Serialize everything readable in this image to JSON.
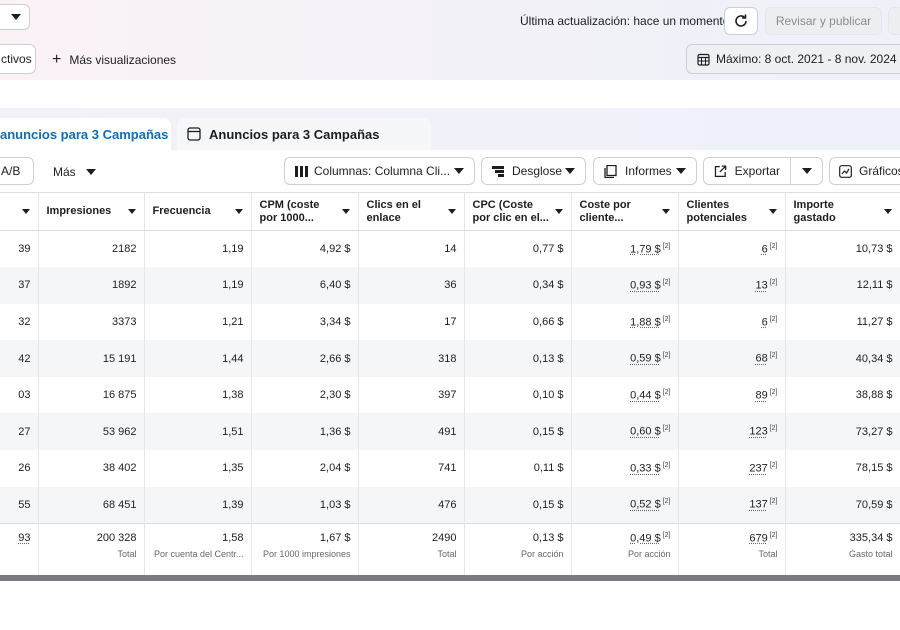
{
  "header": {
    "last_update": "Última actualización: hace un momento",
    "review_publish": "Revisar y publicar",
    "more_views": "Más visualizaciones",
    "filter_chip": "ctivos",
    "date_range": "Máximo: 8 oct. 2021 - 8 nov. 2024"
  },
  "tabs": [
    {
      "label": "anuncios para 3 Campañas",
      "active": true
    },
    {
      "label": "Anuncios para 3 Campañas",
      "active": false
    }
  ],
  "toolbar": {
    "ab": "A/B",
    "more": "Más",
    "columns": "Columnas: Columna Cli...",
    "breakdown": "Desglose",
    "reports": "Informes",
    "export": "Exportar",
    "charts": "Gráficos"
  },
  "columns": [
    {
      "label": ""
    },
    {
      "label": "Impresiones"
    },
    {
      "label": "Frecuencia"
    },
    {
      "label": "CPM (coste por 1000..."
    },
    {
      "label": "Clics en el enlace"
    },
    {
      "label": "CPC (Coste por clic en el..."
    },
    {
      "label": "Coste por cliente..."
    },
    {
      "label": "Clientes potenciales"
    },
    {
      "label": "Importe gastado"
    }
  ],
  "rows": [
    {
      "c0": "39",
      "impressions": "2182",
      "frequency": "1,19",
      "cpm": "4,92 $",
      "clicks": "14",
      "cpc": "0,77 $",
      "cpl": "1,79 $",
      "leads": "6",
      "spent": "10,73 $"
    },
    {
      "c0": "37",
      "impressions": "1892",
      "frequency": "1,19",
      "cpm": "6,40 $",
      "clicks": "36",
      "cpc": "0,34 $",
      "cpl": "0,93 $",
      "leads": "13",
      "spent": "12,11 $"
    },
    {
      "c0": "32",
      "impressions": "3373",
      "frequency": "1,21",
      "cpm": "3,34 $",
      "clicks": "17",
      "cpc": "0,66 $",
      "cpl": "1,88 $",
      "leads": "6",
      "spent": "11,27 $"
    },
    {
      "c0": "42",
      "impressions": "15 191",
      "frequency": "1,44",
      "cpm": "2,66 $",
      "clicks": "318",
      "cpc": "0,13 $",
      "cpl": "0,59 $",
      "leads": "68",
      "spent": "40,34 $"
    },
    {
      "c0": "03",
      "impressions": "16 875",
      "frequency": "1,38",
      "cpm": "2,30 $",
      "clicks": "397",
      "cpc": "0,10 $",
      "cpl": "0,44 $",
      "leads": "89",
      "spent": "38,88 $"
    },
    {
      "c0": "27",
      "impressions": "53 962",
      "frequency": "1,51",
      "cpm": "1,36 $",
      "clicks": "491",
      "cpc": "0,15 $",
      "cpl": "0,60 $",
      "leads": "123",
      "spent": "73,27 $"
    },
    {
      "c0": "26",
      "impressions": "38 402",
      "frequency": "1,35",
      "cpm": "2,04 $",
      "clicks": "741",
      "cpc": "0,11 $",
      "cpl": "0,33 $",
      "leads": "237",
      "spent": "78,15 $"
    },
    {
      "c0": "55",
      "impressions": "68 451",
      "frequency": "1,39",
      "cpm": "1,03 $",
      "clicks": "476",
      "cpc": "0,15 $",
      "cpl": "0,52 $",
      "leads": "137",
      "spent": "70,59 $"
    }
  ],
  "footnote_mark": "[2]",
  "totals": {
    "c0": "93",
    "impressions": "200 328",
    "impressions_sub": "Total",
    "frequency": "1,58",
    "frequency_sub": "Por cuenta del Centr...",
    "cpm": "1,67 $",
    "cpm_sub": "Por 1000 impresiones",
    "clicks": "2490",
    "clicks_sub": "Total",
    "cpc": "0,13 $",
    "cpc_sub": "Por acción",
    "cpl": "0,49 $",
    "cpl_sub": "Por acción",
    "leads": "679",
    "leads_sub": "Total",
    "spent": "335,34 $",
    "spent_sub": "Gasto total"
  }
}
